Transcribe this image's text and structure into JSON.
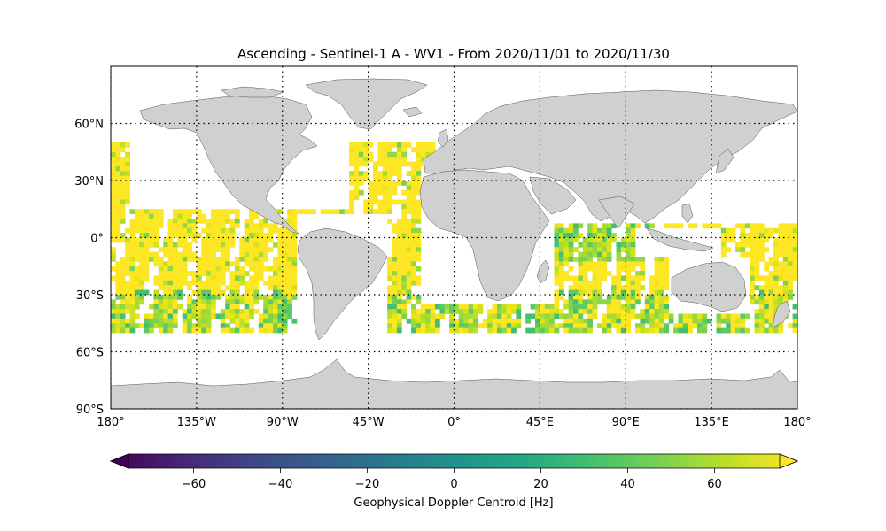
{
  "title": "Ascending - Sentinel-1 A - WV1 - From 2020/11/01 to 2020/11/30",
  "map": {
    "projection": "PlateCarree",
    "lon_range": [
      -180,
      180
    ],
    "lat_range": [
      -90,
      90
    ],
    "land_color": "#d0d0d0",
    "coastline_color": "#555555",
    "gridlines": "dotted",
    "lon_ticks": [
      {
        "value": -180,
        "label": "180°"
      },
      {
        "value": -135,
        "label": "135°W"
      },
      {
        "value": -90,
        "label": "90°W"
      },
      {
        "value": -45,
        "label": "45°W"
      },
      {
        "value": 0,
        "label": "0°"
      },
      {
        "value": 45,
        "label": "45°E"
      },
      {
        "value": 90,
        "label": "90°E"
      },
      {
        "value": 135,
        "label": "135°E"
      },
      {
        "value": 180,
        "label": "180°"
      }
    ],
    "lat_ticks": [
      {
        "value": 60,
        "label": "60°N"
      },
      {
        "value": 30,
        "label": "30°N"
      },
      {
        "value": 0,
        "label": "0°"
      },
      {
        "value": -30,
        "label": "30°S"
      },
      {
        "value": -60,
        "label": "60°S"
      },
      {
        "value": -90,
        "label": "90°S"
      }
    ],
    "data_lat_range": [
      -50,
      50
    ]
  },
  "chart_data": {
    "type": "heatmap",
    "title": "Ascending - Sentinel-1 A - WV1 - From 2020/11/01 to 2020/11/30",
    "colormap": "viridis",
    "clim": [
      -75,
      75
    ],
    "colorbar": {
      "label": "Geophysical Doppler Centroid [Hz]",
      "ticks": [
        -60,
        -40,
        -20,
        0,
        20,
        40,
        60
      ],
      "extend": "both",
      "orientation": "horizontal"
    },
    "data_extent": {
      "lon": [
        -180,
        180
      ],
      "lat": [
        -50,
        50
      ]
    },
    "dominant_value_range": [
      40,
      75
    ]
  }
}
